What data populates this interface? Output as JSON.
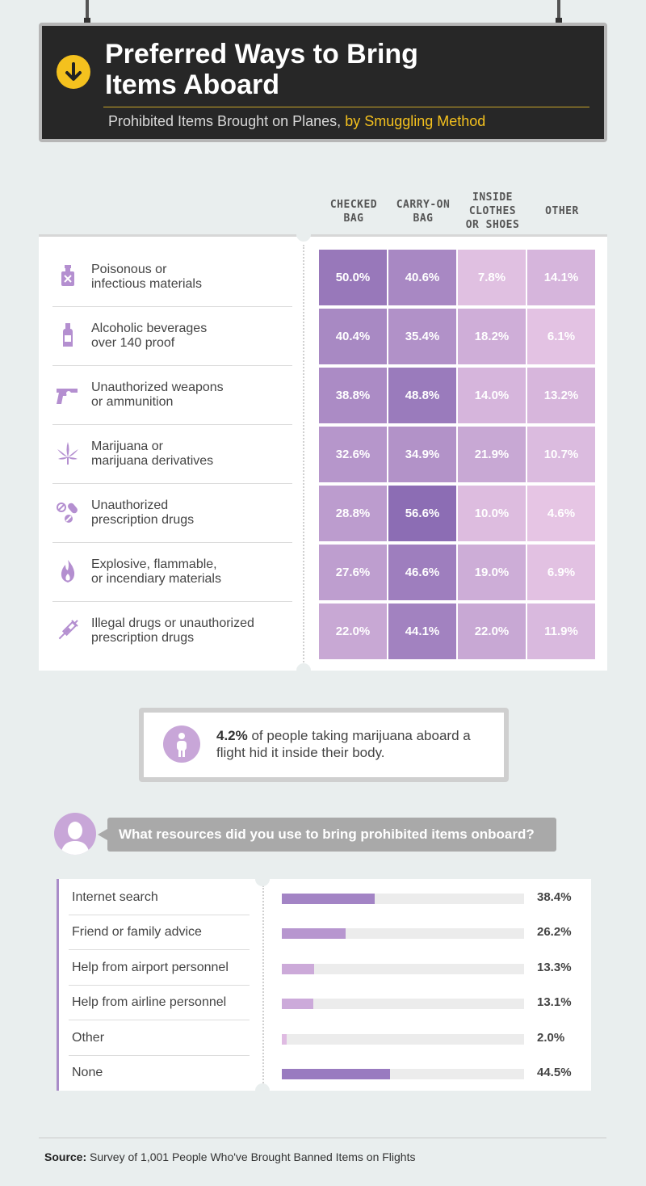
{
  "header": {
    "title": "Preferred Ways to Bring Items Aboard",
    "subtitle_plain": "Prohibited Items Brought on Planes,",
    "subtitle_highlight": "by Smuggling Method"
  },
  "colors": {
    "sign_bg": "#272727",
    "accent_yellow": "#f4c11e",
    "purple_dark": "#8a6bb3",
    "purple_light": "#e7c6e5",
    "bar_purple": "#9f7fc0",
    "bar_light": "#dcb8e0"
  },
  "chart_data": [
    {
      "type": "heatmap",
      "columns": [
        "CHECKED BAG",
        "CARRY-ON BAG",
        "INSIDE CLOTHES OR SHOES",
        "OTHER"
      ],
      "rows": [
        {
          "label": "Poisonous or\ninfectious materials",
          "icon": "poison-bottle-icon",
          "values": [
            50.0,
            40.6,
            7.8,
            14.1
          ]
        },
        {
          "label": "Alcoholic beverages\nover 140 proof",
          "icon": "liquor-bottle-icon",
          "values": [
            40.4,
            35.4,
            18.2,
            6.1
          ]
        },
        {
          "label": "Unauthorized weapons\nor ammunition",
          "icon": "revolver-icon",
          "values": [
            38.8,
            48.8,
            14.0,
            13.2
          ]
        },
        {
          "label": "Marijuana or\nmarijuana derivatives",
          "icon": "cannabis-leaf-icon",
          "values": [
            32.6,
            34.9,
            21.9,
            10.7
          ]
        },
        {
          "label": "Unauthorized\nprescription drugs",
          "icon": "pills-icon",
          "values": [
            28.8,
            56.6,
            10.0,
            4.6
          ]
        },
        {
          "label": "Explosive, flammable,\nor incendiary materials",
          "icon": "flame-icon",
          "values": [
            27.6,
            46.6,
            19.0,
            6.9
          ]
        },
        {
          "label": "Illegal drugs or unauthorized\nprescription drugs",
          "icon": "syringe-icon",
          "values": [
            22.0,
            44.1,
            22.0,
            11.9
          ]
        }
      ],
      "unit": "%"
    },
    {
      "type": "bar",
      "title": "What resources did you use to bring prohibited items onboard?",
      "categories": [
        "Internet search",
        "Friend or family advice",
        "Help from airport personnel",
        "Help from airline personnel",
        "Other",
        "None"
      ],
      "values": [
        38.4,
        26.2,
        13.3,
        13.1,
        2.0,
        44.5
      ],
      "unit": "%",
      "xlim": [
        0,
        100
      ]
    }
  ],
  "callout": {
    "stat": "4.2%",
    "text": " of people taking marijuana aboard a flight hid it inside their body.",
    "icon": "person-icon"
  },
  "question": {
    "icon": "user-avatar-icon"
  },
  "source": {
    "label": "Source:",
    "text": " Survey of 1,001 People Who've Brought Banned Items on Flights"
  }
}
